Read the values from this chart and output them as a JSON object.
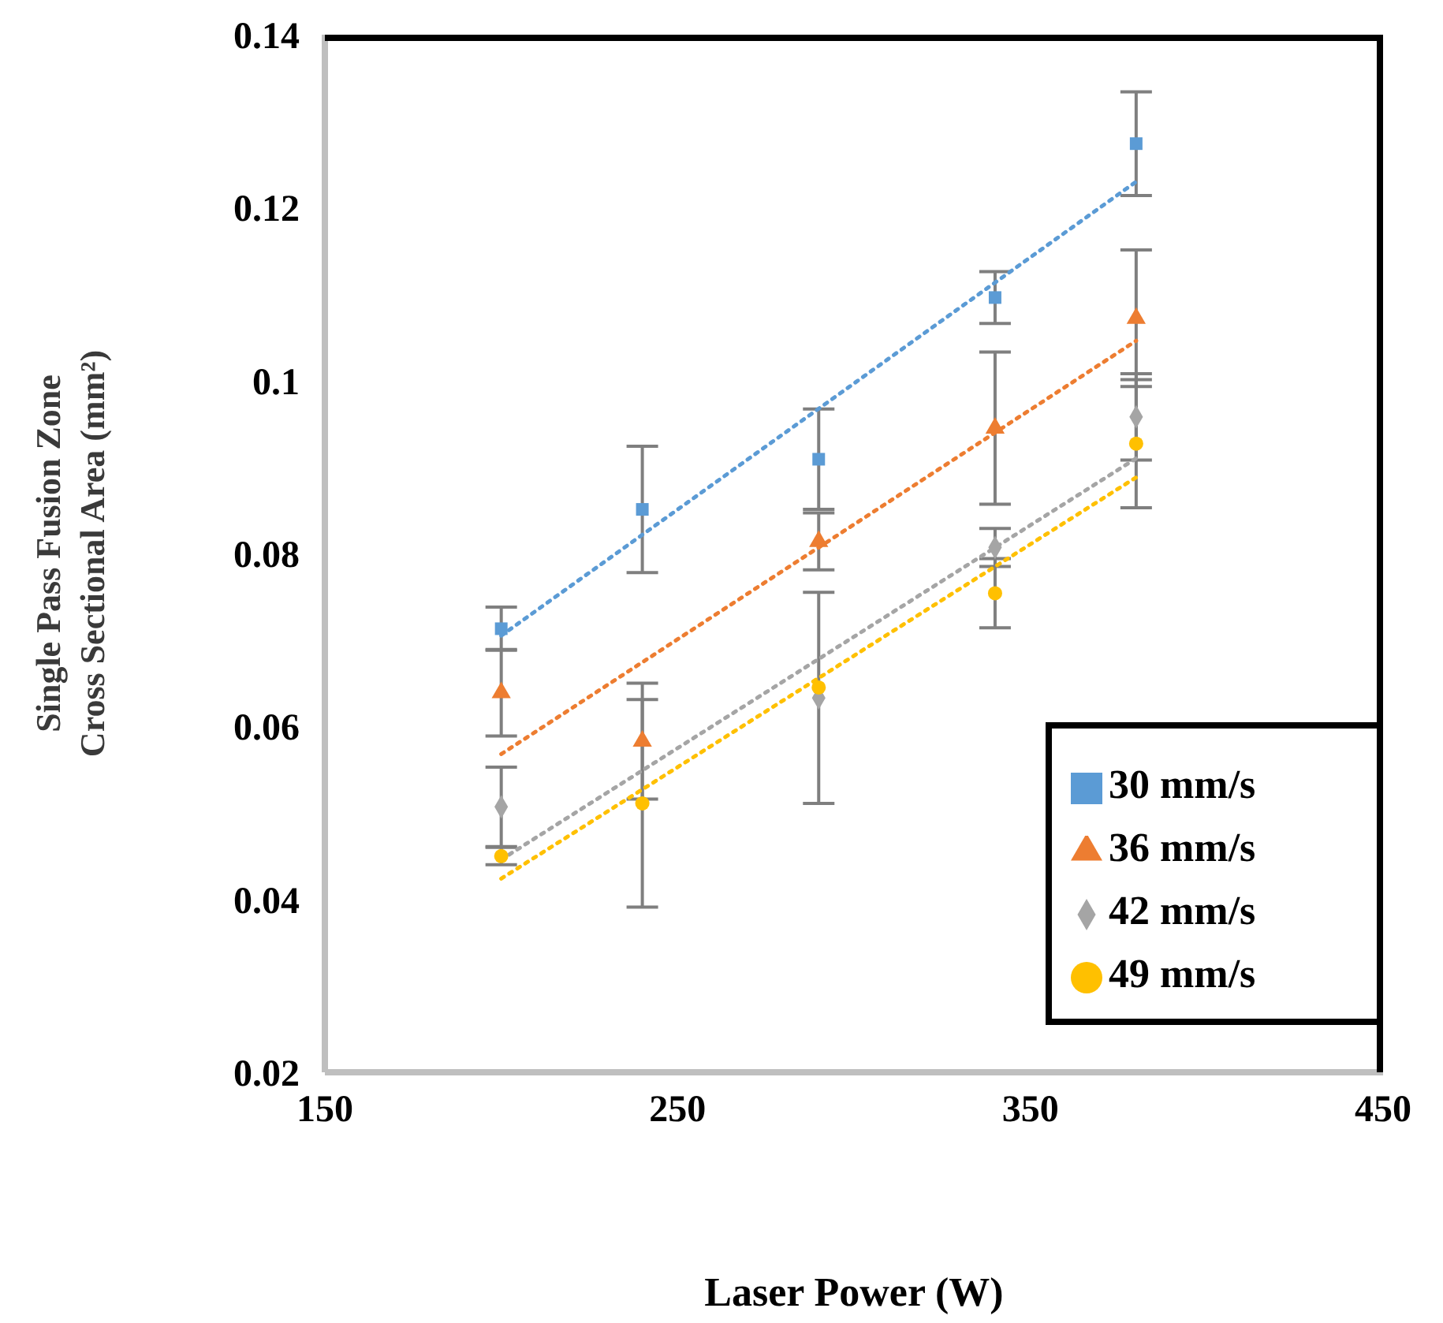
{
  "chart_data": {
    "type": "scatter",
    "xlabel": "Laser Power (W)",
    "ylabel": "Single Pass Fusion Zone\nCross Sectional Area (mm²)",
    "xlim": [
      150,
      450
    ],
    "xticks": [
      150,
      250,
      350,
      450
    ],
    "ylim": [
      0.02,
      0.14
    ],
    "yticks": [
      0.02,
      0.04,
      0.06,
      0.08,
      0.1,
      0.12,
      0.14
    ],
    "grid": false,
    "legend": "bottom right",
    "series": [
      {
        "name": "30 mm/s",
        "color": "#5b9bd5",
        "marker": "square",
        "x": [
          200,
          240,
          290,
          340,
          380
        ],
        "values": [
          0.0713,
          0.0851,
          0.0909,
          0.1096,
          0.1274
        ],
        "errors": [
          0.0025,
          0.0073,
          0.0058,
          0.003,
          0.006
        ]
      },
      {
        "name": "36 mm/s",
        "color": "#ed7d31",
        "marker": "triangle",
        "x": [
          200,
          240,
          290,
          340,
          380
        ],
        "values": [
          0.0639,
          0.0583,
          0.0814,
          0.0945,
          0.1072
        ],
        "errors": [
          0.005,
          0.0067,
          0.0033,
          0.0088,
          0.0079
        ]
      },
      {
        "name": "42 mm/s",
        "color": "#a5a5a5",
        "marker": "diamond",
        "x": [
          200,
          240,
          290,
          340,
          380
        ],
        "values": [
          0.0507,
          null,
          0.0633,
          0.0807,
          0.0958
        ],
        "errors": [
          0.0046,
          null,
          0.0122,
          0.0022,
          0.005
        ]
      },
      {
        "name": "49 mm/s",
        "color": "#ffc000",
        "marker": "circle",
        "x": [
          200,
          240,
          290,
          340,
          380
        ],
        "values": [
          0.045,
          0.0511,
          0.0645,
          0.0754,
          0.0927
        ],
        "errors": [
          0.001,
          0.012,
          null,
          0.004,
          0.0074
        ]
      },
      {
        "type": "line",
        "color": "#5b9bd5",
        "marker": "none",
        "line_style": "dotted",
        "x": [
          200,
          380
        ],
        "values": [
          0.0705,
          0.123
        ]
      },
      {
        "type": "line",
        "color": "#ed7d31",
        "marker": "none",
        "line_style": "dotted",
        "x": [
          200,
          380
        ],
        "values": [
          0.0568,
          0.1046
        ]
      },
      {
        "type": "line",
        "color": "#a5a5a5",
        "marker": "none",
        "line_style": "dotted",
        "x": [
          200,
          380
        ],
        "values": [
          0.0446,
          0.091
        ]
      },
      {
        "type": "line",
        "color": "#ffc000",
        "marker": "none",
        "line_style": "dotted",
        "x": [
          200,
          380
        ],
        "values": [
          0.0424,
          0.0888
        ]
      }
    ]
  }
}
